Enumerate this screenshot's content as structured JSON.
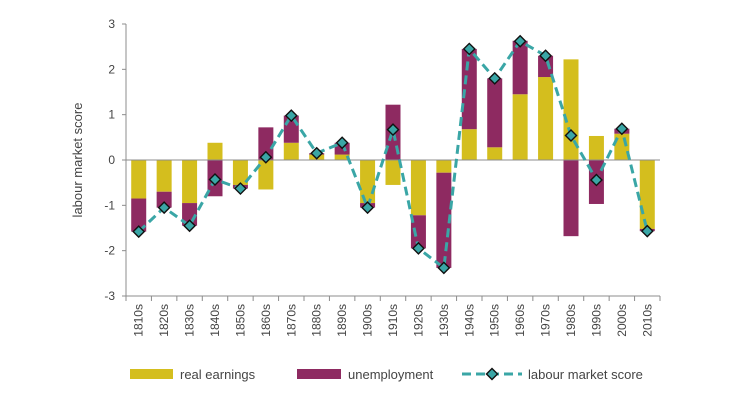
{
  "chart_data": {
    "type": "bar",
    "stacked": true,
    "title": "",
    "xlabel": "",
    "ylabel": "labour market score",
    "ylim": [
      -3,
      3
    ],
    "yticks": [
      -3,
      -2,
      -1,
      0,
      1,
      2,
      3
    ],
    "grid": false,
    "legend_position": "bottom",
    "categories": [
      "1810s",
      "1820s",
      "1830s",
      "1840s",
      "1850s",
      "1860s",
      "1870s",
      "1880s",
      "1890s",
      "1900s",
      "1910s",
      "1920s",
      "1930s",
      "1940s",
      "1950s",
      "1960s",
      "1970s",
      "1980s",
      "1990s",
      "2000s",
      "2010s"
    ],
    "series": [
      {
        "name": "real earnings",
        "kind": "bar",
        "color": "#d4be1e",
        "values": [
          -0.85,
          -0.7,
          -0.95,
          0.38,
          -0.55,
          -0.65,
          0.38,
          0.12,
          0.12,
          -0.95,
          -0.55,
          -1.22,
          -0.28,
          0.68,
          0.28,
          1.45,
          1.83,
          2.22,
          0.53,
          0.58,
          -1.52
        ]
      },
      {
        "name": "unemployment",
        "kind": "bar",
        "color": "#8e2a61",
        "values": [
          -0.73,
          -0.35,
          -0.5,
          -0.8,
          -0.08,
          0.72,
          0.6,
          0.03,
          0.26,
          -0.1,
          1.22,
          -0.73,
          -2.1,
          1.77,
          1.52,
          1.18,
          0.47,
          -1.68,
          -0.97,
          0.11,
          -0.05
        ]
      },
      {
        "name": "labour market score",
        "kind": "line",
        "color": "#3aa6a6",
        "values": [
          -1.58,
          -1.05,
          -1.45,
          -0.43,
          -0.63,
          0.06,
          0.98,
          0.15,
          0.38,
          -1.05,
          0.67,
          -1.95,
          -2.38,
          2.45,
          1.8,
          2.62,
          2.3,
          0.54,
          -0.44,
          0.69,
          -1.57
        ]
      }
    ]
  }
}
